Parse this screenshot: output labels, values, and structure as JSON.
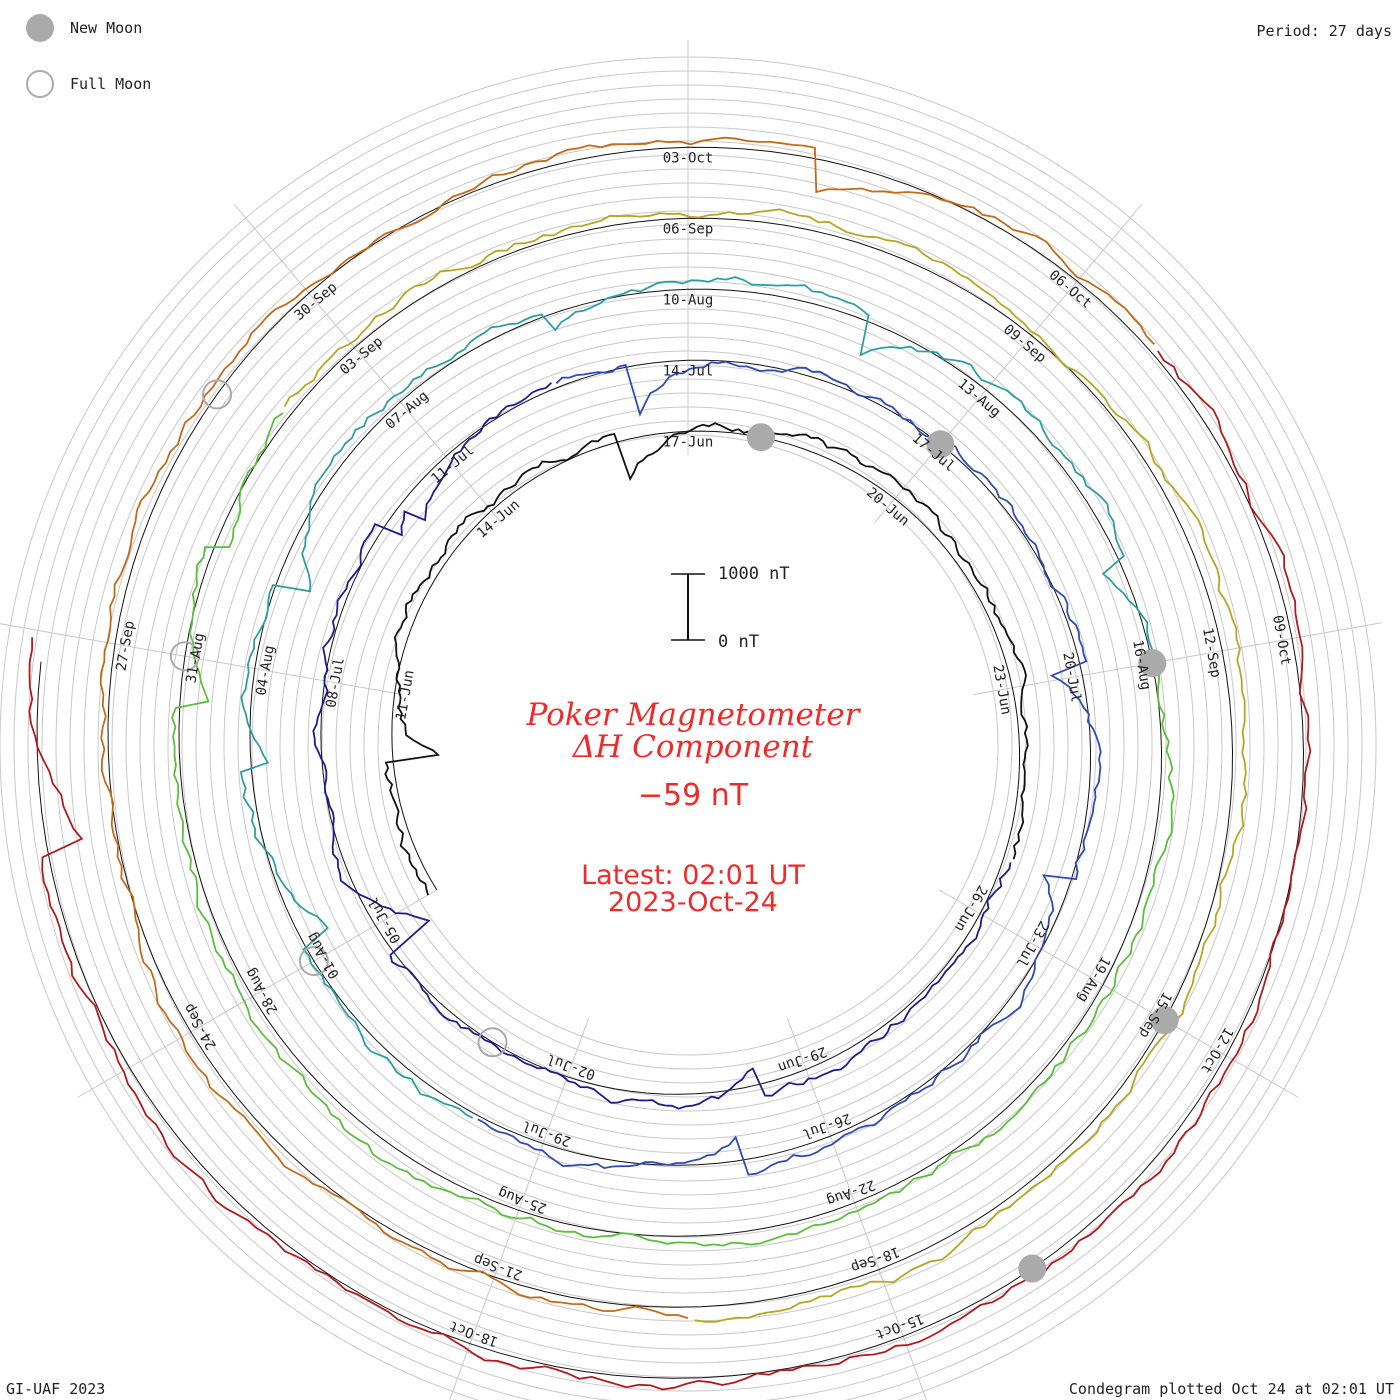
{
  "legend": {
    "new_moon_label": "New Moon",
    "full_moon_label": "Full Moon",
    "new_moon_color": "#aaaaaa",
    "full_moon_color": "#aaaaaa"
  },
  "period_label": "Period: 27 days",
  "credit": "GI-UAF 2023",
  "plotted_label": "Condegram plotted Oct 24 at 02:01 UT",
  "center": {
    "title_line1": "Poker Magnetometer",
    "title_line2": "ΔH Component",
    "value": "−59 nT",
    "latest_line1": "Latest: 02:01 UT",
    "latest_line2": "2023-Oct-24",
    "color": "#ee2a2a"
  },
  "scale_bar": {
    "top_label": "1000 nT",
    "bottom_label": "0 nT"
  },
  "chart_data": {
    "type": "condegram",
    "title": "Poker Magnetometer ΔH Component",
    "period_days": 27,
    "start_date": "2023-06-08",
    "end_date": "2023-10-24",
    "latest": "2023-Oct-24 02:01 UT",
    "latest_value_nT": -59,
    "scale_nT": [
      0,
      1000
    ],
    "series_colors": [
      "#111111",
      "#1c1c8e",
      "#2f4cb5",
      "#2d9ea5",
      "#5abf3a",
      "#b8a520",
      "#c46a18",
      "#b31a1a"
    ],
    "date_labels": [
      {
        "date": "2023-06-11",
        "label": "11-Jun"
      },
      {
        "date": "2023-06-14",
        "label": "14-Jun"
      },
      {
        "date": "2023-06-17",
        "label": "17-Jun"
      },
      {
        "date": "2023-06-20",
        "label": "20-Jun"
      },
      {
        "date": "2023-06-23",
        "label": "23-Jun"
      },
      {
        "date": "2023-06-26",
        "label": "26-Jun"
      },
      {
        "date": "2023-06-29",
        "label": "29-Jun"
      },
      {
        "date": "2023-07-02",
        "label": "02-Jul"
      },
      {
        "date": "2023-07-05",
        "label": "05-Jul"
      },
      {
        "date": "2023-07-08",
        "label": "08-Jul"
      },
      {
        "date": "2023-07-11",
        "label": "11-Jul"
      },
      {
        "date": "2023-07-14",
        "label": "14-Jul"
      },
      {
        "date": "2023-07-17",
        "label": "17-Jul"
      },
      {
        "date": "2023-07-20",
        "label": "20-Jul"
      },
      {
        "date": "2023-07-23",
        "label": "23-Jul"
      },
      {
        "date": "2023-07-26",
        "label": "26-Jul"
      },
      {
        "date": "2023-07-29",
        "label": "29-Jul"
      },
      {
        "date": "2023-08-01",
        "label": "01-Aug"
      },
      {
        "date": "2023-08-04",
        "label": "04-Aug"
      },
      {
        "date": "2023-08-07",
        "label": "07-Aug"
      },
      {
        "date": "2023-08-10",
        "label": "10-Aug"
      },
      {
        "date": "2023-08-13",
        "label": "13-Aug"
      },
      {
        "date": "2023-08-16",
        "label": "16-Aug"
      },
      {
        "date": "2023-08-19",
        "label": "19-Aug"
      },
      {
        "date": "2023-08-22",
        "label": "22-Aug"
      },
      {
        "date": "2023-08-25",
        "label": "25-Aug"
      },
      {
        "date": "2023-08-28",
        "label": "28-Aug"
      },
      {
        "date": "2023-08-31",
        "label": "31-Aug"
      },
      {
        "date": "2023-09-03",
        "label": "03-Sep"
      },
      {
        "date": "2023-09-06",
        "label": "06-Sep"
      },
      {
        "date": "2023-09-09",
        "label": "09-Sep"
      },
      {
        "date": "2023-09-12",
        "label": "12-Sep"
      },
      {
        "date": "2023-09-15",
        "label": "15-Sep"
      },
      {
        "date": "2023-09-18",
        "label": "18-Sep"
      },
      {
        "date": "2023-09-21",
        "label": "21-Sep"
      },
      {
        "date": "2023-09-24",
        "label": "24-Sep"
      },
      {
        "date": "2023-09-27",
        "label": "27-Sep"
      },
      {
        "date": "2023-09-30",
        "label": "30-Sep"
      },
      {
        "date": "2023-10-03",
        "label": "03-Oct"
      },
      {
        "date": "2023-10-06",
        "label": "06-Oct"
      },
      {
        "date": "2023-10-09",
        "label": "09-Oct"
      },
      {
        "date": "2023-10-12",
        "label": "12-Oct"
      },
      {
        "date": "2023-10-15",
        "label": "15-Oct"
      },
      {
        "date": "2023-10-18",
        "label": "18-Oct"
      }
    ],
    "new_moons": [
      "2023-06-18",
      "2023-07-17",
      "2023-08-16",
      "2023-09-15",
      "2023-10-14"
    ],
    "full_moons": [
      "2023-07-03",
      "2023-08-01",
      "2023-08-31",
      "2023-09-29"
    ]
  }
}
